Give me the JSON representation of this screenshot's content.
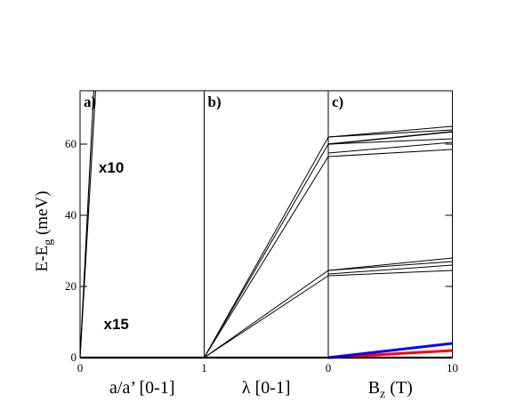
{
  "chart_data": {
    "type": "line",
    "ylabel": "E-E",
    "ylabel_subscript": "g",
    "ylabel_unit": "(meV)",
    "ylim": [
      0,
      75
    ],
    "y_ticks": [
      "0",
      "20",
      "40",
      "60"
    ],
    "panels": [
      {
        "label": "a)",
        "xlabel": "a/a’ [0-1]",
        "xlim": [
          0,
          1
        ],
        "x_ticks": [
          {
            "value": 0,
            "label": "0"
          }
        ],
        "annotations": [
          {
            "text": "x10",
            "x": 0.15,
            "y": 52
          },
          {
            "text": "x15",
            "x": 0.19,
            "y": 8
          }
        ],
        "series": [
          {
            "color": "#000000",
            "width": 1.1,
            "points": [
              [
                0,
                0
              ],
              [
                0.125,
                75
              ]
            ]
          },
          {
            "color": "#000000",
            "width": 1.1,
            "points": [
              [
                0,
                0
              ],
              [
                0.11,
                75
              ]
            ]
          },
          {
            "color": "#000000",
            "width": 2.2,
            "points": [
              [
                0,
                0
              ],
              [
                1,
                0
              ]
            ]
          }
        ]
      },
      {
        "label": "b)",
        "xlabel": "λ [0-1]",
        "xlim": [
          1,
          0
        ],
        "x_ticks": [
          {
            "value": 1,
            "label": "1"
          }
        ],
        "series": [
          {
            "color": "#000000",
            "width": 1,
            "points": [
              [
                1,
                0
              ],
              [
                0,
                62
              ]
            ]
          },
          {
            "color": "#000000",
            "width": 1,
            "points": [
              [
                1,
                0
              ],
              [
                0,
                60
              ]
            ]
          },
          {
            "color": "#000000",
            "width": 1,
            "points": [
              [
                1,
                0
              ],
              [
                0,
                56.5
              ]
            ]
          },
          {
            "color": "#000000",
            "width": 1,
            "points": [
              [
                1,
                0
              ],
              [
                0,
                24.5
              ]
            ]
          },
          {
            "color": "#000000",
            "width": 1,
            "points": [
              [
                1,
                0
              ],
              [
                0,
                23
              ]
            ]
          },
          {
            "color": "#000000",
            "width": 2.2,
            "points": [
              [
                1,
                0
              ],
              [
                0,
                0
              ]
            ]
          }
        ]
      },
      {
        "label": "c)",
        "xlabel": "B",
        "xlabel_subscript": "z",
        "xlabel_unit": "(T)",
        "xlim": [
          0,
          10
        ],
        "x_ticks": [
          {
            "value": 0,
            "label": "0"
          },
          {
            "value": 10,
            "label": "10"
          }
        ],
        "series": [
          {
            "color": "#000000",
            "width": 1,
            "points": [
              [
                0,
                62
              ],
              [
                10,
                65
              ]
            ]
          },
          {
            "color": "#000000",
            "width": 1,
            "points": [
              [
                0,
                62
              ],
              [
                10,
                64
              ]
            ]
          },
          {
            "color": "#000000",
            "width": 1.4,
            "points": [
              [
                0,
                60
              ],
              [
                10,
                63.5
              ]
            ]
          },
          {
            "color": "#000000",
            "width": 1,
            "points": [
              [
                0,
                60
              ],
              [
                10,
                61.5
              ]
            ]
          },
          {
            "color": "#000000",
            "width": 1,
            "points": [
              [
                0,
                57.5
              ],
              [
                10,
                60.5
              ]
            ]
          },
          {
            "color": "#000000",
            "width": 1,
            "points": [
              [
                0,
                56.5
              ],
              [
                10,
                58.5
              ]
            ]
          },
          {
            "color": "#000000",
            "width": 1,
            "points": [
              [
                0,
                24.5
              ],
              [
                10,
                28
              ]
            ]
          },
          {
            "color": "#000000",
            "width": 1,
            "points": [
              [
                0,
                24.5
              ],
              [
                10,
                27
              ]
            ]
          },
          {
            "color": "#000000",
            "width": 1,
            "points": [
              [
                0,
                23.5
              ],
              [
                10,
                26
              ]
            ]
          },
          {
            "color": "#000000",
            "width": 1,
            "points": [
              [
                0,
                23
              ],
              [
                10,
                24.5
              ]
            ]
          },
          {
            "color": "#000000",
            "width": 2.2,
            "points": [
              [
                0,
                0
              ],
              [
                10,
                0
              ]
            ]
          },
          {
            "color": "#ff0000",
            "width": 3,
            "points": [
              [
                0,
                0
              ],
              [
                10,
                2
              ]
            ]
          },
          {
            "color": "#0000ff",
            "width": 3,
            "points": [
              [
                0,
                0
              ],
              [
                10,
                4
              ]
            ]
          }
        ]
      }
    ]
  }
}
